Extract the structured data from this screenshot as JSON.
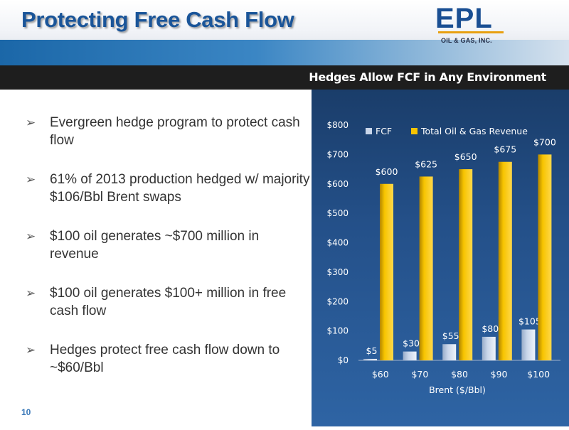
{
  "header": {
    "title": "Protecting Free Cash Flow",
    "logo_main": "EPL",
    "logo_sub": "OIL & GAS, INC."
  },
  "subhead": "Hedges Allow FCF in Any Environment",
  "bullets": [
    {
      "icon": "arrow-bullet-icon",
      "text": "Evergreen hedge program to protect cash flow"
    },
    {
      "icon": "arrow-bullet-icon",
      "text": "61% of 2013 production hedged w/ majority $106/Bbl Brent swaps"
    },
    {
      "icon": "arrow-bullet-icon",
      "text": "$100 oil generates ~$700 million in revenue"
    },
    {
      "icon": "arrow-bullet-icon",
      "text": "$100 oil generates $100+ million in free cash flow"
    },
    {
      "icon": "arrow-bullet-icon",
      "text": "Hedges protect free cash flow down to ~$60/Bbl"
    }
  ],
  "bullet_glyph": "➢",
  "page_number": "10",
  "colors": {
    "title": "#1a5599",
    "fcf": "#c9d6ea",
    "revenue": "#f7c400",
    "revenue_dark": "#b08400",
    "panel": "#245089"
  },
  "chart_data": {
    "type": "bar",
    "categories": [
      "$60",
      "$70",
      "$80",
      "$90",
      "$100"
    ],
    "series": [
      {
        "name": "FCF",
        "values": [
          5,
          30,
          55,
          80,
          105
        ],
        "labels": [
          "$5",
          "$30",
          "$55",
          "$80",
          "$105"
        ]
      },
      {
        "name": "Total Oil & Gas Revenue",
        "values": [
          600,
          625,
          650,
          675,
          700
        ],
        "labels": [
          "$600",
          "$625",
          "$650",
          "$675",
          "$700"
        ]
      }
    ],
    "xlabel": "Brent ($/Bbl)",
    "ylabel": "",
    "ylim": [
      0,
      800
    ],
    "yticks": [
      0,
      100,
      200,
      300,
      400,
      500,
      600,
      700,
      800
    ],
    "ytick_labels": [
      "$0",
      "$100",
      "$200",
      "$300",
      "$400",
      "$500",
      "$600",
      "$700",
      "$800"
    ],
    "legend_position": "top-left",
    "grid": false
  }
}
